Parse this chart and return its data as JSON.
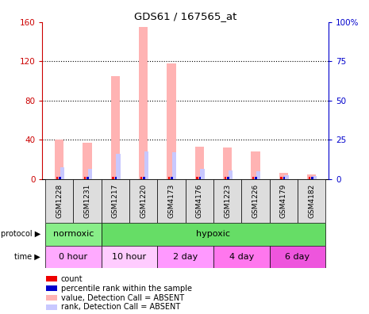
{
  "title": "GDS61 / 167565_at",
  "samples": [
    "GSM1228",
    "GSM1231",
    "GSM1217",
    "GSM1220",
    "GSM4173",
    "GSM4176",
    "GSM1223",
    "GSM1226",
    "GSM4179",
    "GSM4182"
  ],
  "value_absent": [
    40,
    37,
    105,
    155,
    118,
    33,
    32,
    28,
    6,
    5
  ],
  "rank_absent_scaled": [
    12,
    10,
    26,
    28,
    27,
    10,
    9,
    8,
    4,
    3
  ],
  "ylim_left": [
    0,
    160
  ],
  "ylim_right": [
    0,
    100
  ],
  "yticks_left": [
    0,
    40,
    80,
    120,
    160
  ],
  "yticks_right": [
    0,
    25,
    50,
    75,
    100
  ],
  "color_value_absent": "#ffb3b3",
  "color_rank_absent": "#c8c8ff",
  "color_count": "#ee0000",
  "color_percentile": "#0000cc",
  "left_axis_color": "#cc0000",
  "right_axis_color": "#0000cc",
  "bg_color": "#ffffff",
  "protocol_labels": [
    "normoxic",
    "hypoxic"
  ],
  "protocol_boundaries": [
    -0.5,
    1.5,
    9.5
  ],
  "protocol_colors": [
    "#88ee88",
    "#66dd66"
  ],
  "time_labels": [
    "0 hour",
    "10 hour",
    "2 day",
    "4 day",
    "6 day"
  ],
  "time_boundaries": [
    -0.5,
    1.5,
    3.5,
    5.5,
    7.5,
    9.5
  ],
  "time_colors": [
    "#ffaaff",
    "#ffccff",
    "#ff99ff",
    "#ff77ee",
    "#ee55dd"
  ],
  "legend_items": [
    {
      "color": "#ee0000",
      "label": "count"
    },
    {
      "color": "#0000cc",
      "label": "percentile rank within the sample"
    },
    {
      "color": "#ffb3b3",
      "label": "value, Detection Call = ABSENT"
    },
    {
      "color": "#c8c8ff",
      "label": "rank, Detection Call = ABSENT"
    }
  ]
}
